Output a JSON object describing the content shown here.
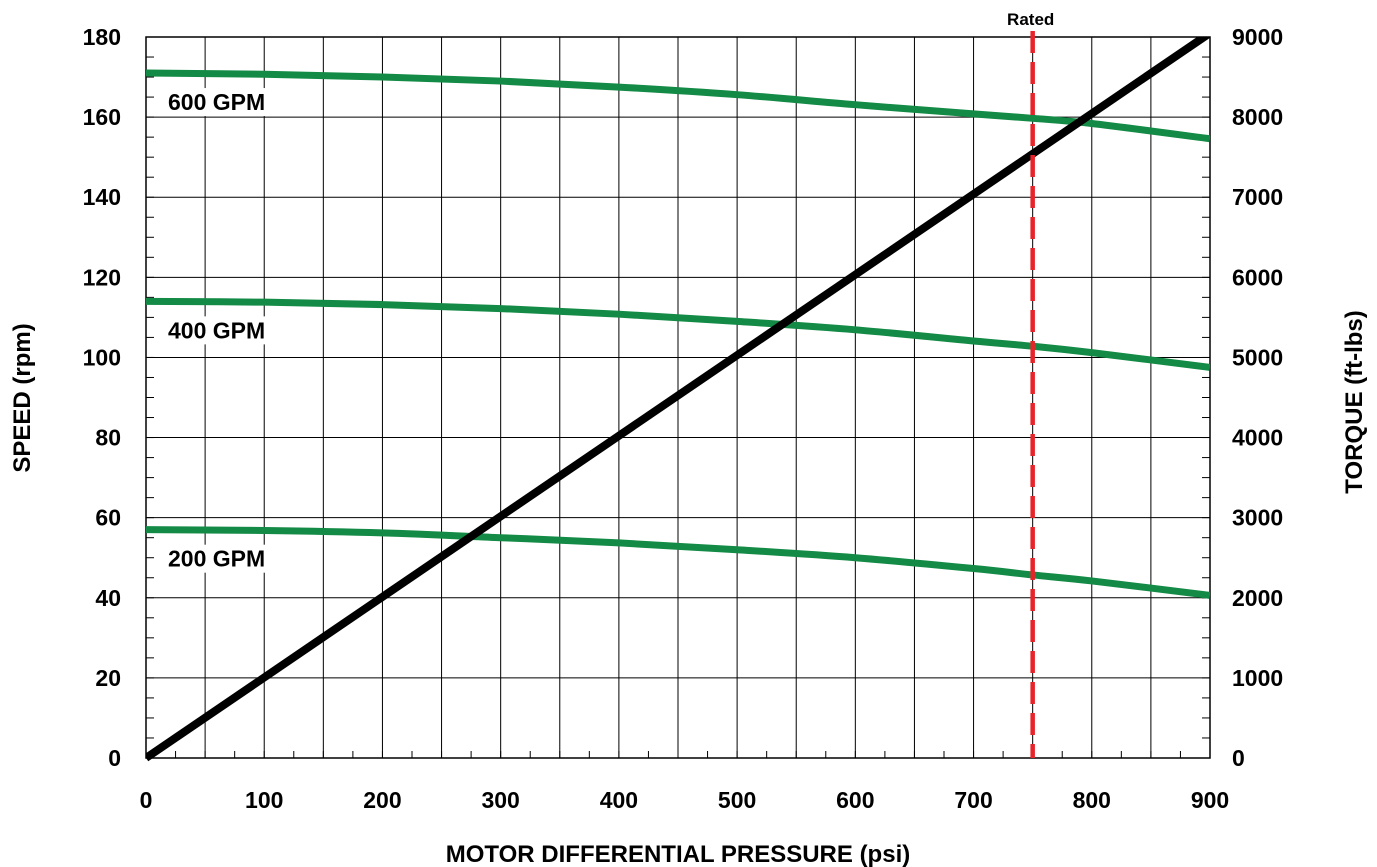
{
  "chart_data": {
    "type": "line",
    "title": "",
    "xlabel": "MOTOR DIFFERENTIAL PRESSURE (psi)",
    "ylabel": "SPEED (rpm)",
    "y2label": "TORQUE (ft-lbs)",
    "xlim": [
      0,
      900
    ],
    "ylim": [
      0,
      180
    ],
    "y2lim": [
      0,
      9000
    ],
    "xticks": [
      0,
      100,
      200,
      300,
      400,
      500,
      600,
      700,
      800,
      900
    ],
    "yticks": [
      0,
      20,
      40,
      60,
      80,
      100,
      120,
      140,
      160,
      180
    ],
    "y2ticks": [
      0,
      1000,
      2000,
      3000,
      4000,
      5000,
      6000,
      7000,
      8000,
      9000
    ],
    "grid": true,
    "series": [
      {
        "name": "600 GPM",
        "axis": "left",
        "color": "#138a45",
        "x": [
          0,
          100,
          200,
          300,
          400,
          500,
          600,
          700,
          750,
          800,
          900
        ],
        "y": [
          171,
          170.7,
          170,
          169,
          167.5,
          165.6,
          163.1,
          160.8,
          159.7,
          158.4,
          154.6
        ]
      },
      {
        "name": "400 GPM",
        "axis": "left",
        "color": "#138a45",
        "x": [
          0,
          100,
          200,
          300,
          400,
          500,
          600,
          700,
          750,
          800,
          900
        ],
        "y": [
          114,
          113.8,
          113.2,
          112.2,
          110.8,
          109,
          106.9,
          104.1,
          102.8,
          101.2,
          97.5
        ]
      },
      {
        "name": "200 GPM",
        "axis": "left",
        "color": "#138a45",
        "x": [
          0,
          100,
          200,
          300,
          400,
          500,
          600,
          700,
          750,
          800,
          900
        ],
        "y": [
          57,
          56.8,
          56.2,
          55,
          53.7,
          52,
          50,
          47.3,
          45.7,
          44.2,
          40.6
        ]
      },
      {
        "name": "",
        "axis": "right",
        "color": "#000000",
        "x": [
          0,
          900
        ],
        "y": [
          0,
          9050
        ]
      }
    ],
    "annotations": [
      {
        "type": "vline",
        "x": 750,
        "label": "Rated",
        "color": "#e8242a",
        "style": "dashed"
      }
    ]
  }
}
